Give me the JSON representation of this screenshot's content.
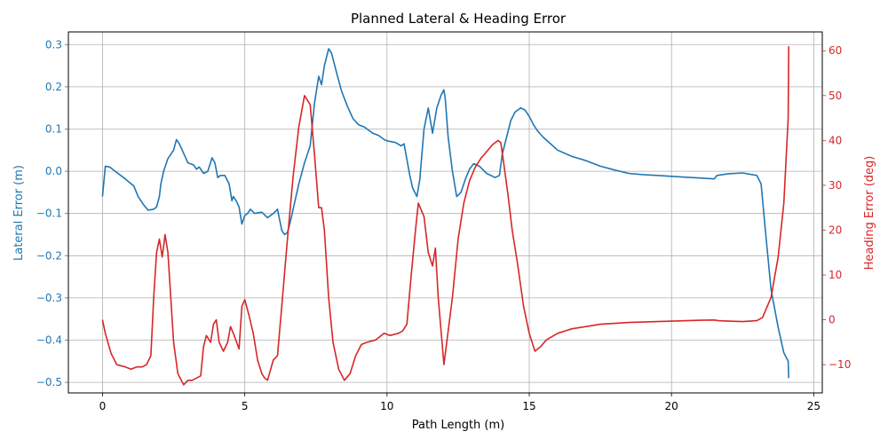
{
  "chart_data": {
    "type": "line",
    "title": "Planned Lateral & Heading Error",
    "xlabel": "Path Length (m)",
    "xlim": [
      -1.2,
      25.3
    ],
    "xticks": [
      0,
      5,
      10,
      15,
      20,
      25
    ],
    "grid": true,
    "left_axis": {
      "label": "Lateral Error (m)",
      "color": "#1f77b4",
      "ylim": [
        -0.525,
        0.33
      ],
      "ticks": [
        -0.5,
        -0.4,
        -0.3,
        -0.2,
        -0.1,
        0.0,
        0.1,
        0.2,
        0.3
      ],
      "tick_labels": [
        "−0.5",
        "−0.4",
        "−0.3",
        "−0.2",
        "−0.1",
        "0.0",
        "0.1",
        "0.2",
        "0.3"
      ]
    },
    "right_axis": {
      "label": "Heading Error (deg)",
      "color": "#d62728",
      "ylim": [
        -16.3,
        64.2
      ],
      "ticks": [
        -10,
        0,
        10,
        20,
        30,
        40,
        50,
        60
      ],
      "tick_labels": [
        "−10",
        "0",
        "10",
        "20",
        "30",
        "40",
        "50",
        "60"
      ]
    },
    "series": [
      {
        "axis": "left",
        "color": "#1f77b4",
        "x": [
          0.0,
          0.1,
          0.25,
          0.5,
          0.8,
          1.1,
          1.25,
          1.45,
          1.6,
          1.8,
          1.9,
          2.0,
          2.05,
          2.15,
          2.3,
          2.5,
          2.6,
          2.7,
          2.8,
          3.0,
          3.2,
          3.3,
          3.4,
          3.55,
          3.7,
          3.85,
          3.95,
          4.05,
          4.15,
          4.3,
          4.45,
          4.55,
          4.6,
          4.7,
          4.8,
          4.9,
          5.0,
          5.1,
          5.2,
          5.35,
          5.5,
          5.6,
          5.8,
          6.0,
          6.15,
          6.3,
          6.4,
          6.5,
          6.6,
          6.7,
          6.9,
          7.1,
          7.3,
          7.45,
          7.6,
          7.7,
          7.8,
          7.95,
          8.05,
          8.2,
          8.4,
          8.6,
          8.8,
          9.0,
          9.2,
          9.3,
          9.4,
          9.5,
          9.7,
          9.9,
          10.0,
          10.3,
          10.5,
          10.6,
          10.8,
          10.9,
          11.05,
          11.15,
          11.3,
          11.45,
          11.6,
          11.75,
          11.9,
          12.0,
          12.05,
          12.15,
          12.3,
          12.45,
          12.6,
          12.75,
          12.9,
          13.05,
          13.25,
          13.5,
          13.8,
          13.95,
          14.05,
          14.2,
          14.35,
          14.5,
          14.7,
          14.85,
          15.0,
          15.15,
          15.3,
          15.5,
          15.75,
          16.0,
          16.5,
          17.0,
          17.5,
          18.0,
          18.5,
          19.0,
          19.5,
          20.0,
          20.5,
          21.0,
          21.5,
          21.6,
          22.0,
          22.5,
          23.0,
          23.15,
          23.3,
          23.5,
          23.75,
          23.95,
          24.1,
          24.12
        ],
        "y": [
          -0.06,
          0.012,
          0.01,
          -0.003,
          -0.018,
          -0.035,
          -0.06,
          -0.08,
          -0.092,
          -0.09,
          -0.085,
          -0.06,
          -0.03,
          0.0,
          0.03,
          0.05,
          0.075,
          0.065,
          0.05,
          0.02,
          0.015,
          0.005,
          0.01,
          -0.005,
          0.0,
          0.032,
          0.02,
          -0.015,
          -0.01,
          -0.01,
          -0.03,
          -0.07,
          -0.06,
          -0.07,
          -0.085,
          -0.125,
          -0.105,
          -0.1,
          -0.09,
          -0.1,
          -0.098,
          -0.097,
          -0.11,
          -0.1,
          -0.09,
          -0.14,
          -0.15,
          -0.145,
          -0.12,
          -0.09,
          -0.03,
          0.02,
          0.06,
          0.16,
          0.225,
          0.205,
          0.25,
          0.29,
          0.28,
          0.24,
          0.19,
          0.155,
          0.125,
          0.11,
          0.105,
          0.1,
          0.095,
          0.09,
          0.085,
          0.075,
          0.072,
          0.068,
          0.06,
          0.065,
          -0.01,
          -0.04,
          -0.06,
          -0.02,
          0.1,
          0.15,
          0.09,
          0.15,
          0.18,
          0.193,
          0.17,
          0.08,
          0.0,
          -0.06,
          -0.05,
          -0.02,
          0.005,
          0.018,
          0.012,
          -0.005,
          -0.015,
          -0.01,
          0.04,
          0.08,
          0.12,
          0.14,
          0.15,
          0.145,
          0.13,
          0.11,
          0.095,
          0.08,
          0.065,
          0.05,
          0.035,
          0.025,
          0.012,
          0.003,
          -0.005,
          -0.008,
          -0.01,
          -0.012,
          -0.014,
          -0.016,
          -0.018,
          -0.01,
          -0.006,
          -0.004,
          -0.01,
          -0.03,
          -0.14,
          -0.28,
          -0.37,
          -0.43,
          -0.45,
          -0.49
        ]
      },
      {
        "axis": "right",
        "color": "#d62728",
        "x": [
          0.0,
          0.1,
          0.3,
          0.5,
          0.8,
          1.0,
          1.2,
          1.4,
          1.55,
          1.7,
          1.8,
          1.9,
          2.0,
          2.1,
          2.2,
          2.3,
          2.4,
          2.5,
          2.65,
          2.85,
          3.0,
          3.15,
          3.3,
          3.45,
          3.55,
          3.65,
          3.8,
          3.9,
          4.0,
          4.1,
          4.25,
          4.4,
          4.5,
          4.6,
          4.8,
          4.9,
          5.0,
          5.15,
          5.3,
          5.45,
          5.6,
          5.7,
          5.8,
          6.0,
          6.15,
          6.3,
          6.5,
          6.7,
          6.9,
          7.1,
          7.3,
          7.45,
          7.6,
          7.7,
          7.8,
          7.95,
          8.1,
          8.3,
          8.5,
          8.7,
          8.9,
          9.1,
          9.3,
          9.6,
          9.9,
          10.1,
          10.4,
          10.55,
          10.7,
          10.85,
          11.0,
          11.1,
          11.3,
          11.45,
          11.6,
          11.7,
          11.8,
          12.0,
          12.1,
          12.3,
          12.5,
          12.7,
          12.9,
          13.1,
          13.3,
          13.5,
          13.7,
          13.9,
          14.0,
          14.1,
          14.25,
          14.4,
          14.6,
          14.8,
          15.0,
          15.2,
          15.4,
          15.6,
          16.0,
          16.5,
          17.0,
          17.5,
          18.0,
          18.5,
          19.0,
          19.5,
          20.0,
          20.5,
          21.0,
          21.5,
          21.65,
          22.0,
          22.5,
          23.0,
          23.2,
          23.5,
          23.75,
          23.95,
          24.1,
          24.12
        ],
        "y": [
          0.0,
          -3.0,
          -7.5,
          -10.0,
          -10.5,
          -11.0,
          -10.5,
          -10.5,
          -10.0,
          -8.0,
          5.0,
          15.0,
          18.0,
          14.0,
          19.0,
          15.0,
          5.0,
          -5.0,
          -12.0,
          -14.5,
          -13.5,
          -13.5,
          -13.0,
          -12.5,
          -6.0,
          -3.5,
          -5.0,
          -1.0,
          0.0,
          -5.0,
          -7.0,
          -5.0,
          -1.5,
          -3.0,
          -6.5,
          3.0,
          4.5,
          1.0,
          -3.0,
          -9.0,
          -12.0,
          -13.0,
          -13.5,
          -9.0,
          -8.0,
          3.0,
          18.0,
          32.0,
          43.0,
          50.0,
          48.0,
          37.0,
          25.0,
          25.0,
          20.0,
          5.0,
          -5.0,
          -11.0,
          -13.5,
          -12.0,
          -8.0,
          -5.5,
          -5.0,
          -4.5,
          -3.0,
          -3.5,
          -3.0,
          -2.5,
          -1.0,
          10.0,
          20.0,
          26.0,
          23.0,
          15.0,
          12.0,
          16.0,
          5.0,
          -10.0,
          -5.0,
          5.0,
          18.0,
          26.0,
          31.0,
          34.0,
          36.0,
          37.5,
          39.0,
          40.0,
          39.5,
          35.0,
          28.0,
          20.0,
          12.0,
          3.0,
          -3.0,
          -7.0,
          -6.0,
          -4.5,
          -3.0,
          -2.0,
          -1.5,
          -1.0,
          -0.8,
          -0.6,
          -0.5,
          -0.4,
          -0.3,
          -0.2,
          -0.1,
          -0.05,
          -0.2,
          -0.3,
          -0.4,
          -0.2,
          0.5,
          5.0,
          14.0,
          26.0,
          45.0,
          61.0
        ]
      }
    ]
  }
}
